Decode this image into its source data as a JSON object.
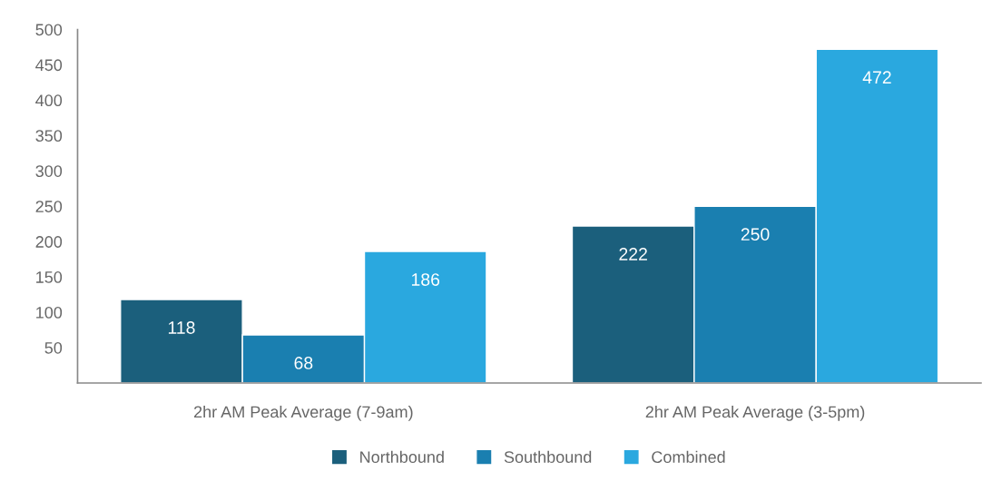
{
  "chart_data": {
    "type": "bar",
    "categories": [
      "2hr AM Peak Average (7-9am)",
      "2hr AM Peak Average (3-5pm)"
    ],
    "series": [
      {
        "name": "Northbound",
        "color": "#1b5f7c",
        "values": [
          118,
          222
        ]
      },
      {
        "name": "Southbound",
        "color": "#1a7fb0",
        "values": [
          68,
          250
        ]
      },
      {
        "name": "Combined",
        "color": "#2aa8df",
        "values": [
          186,
          472
        ]
      }
    ],
    "ylim": [
      0,
      500
    ],
    "yticks": [
      50,
      100,
      150,
      200,
      250,
      300,
      350,
      400,
      450,
      500
    ],
    "grid": false,
    "legend": "bottom",
    "data_labels": true
  }
}
